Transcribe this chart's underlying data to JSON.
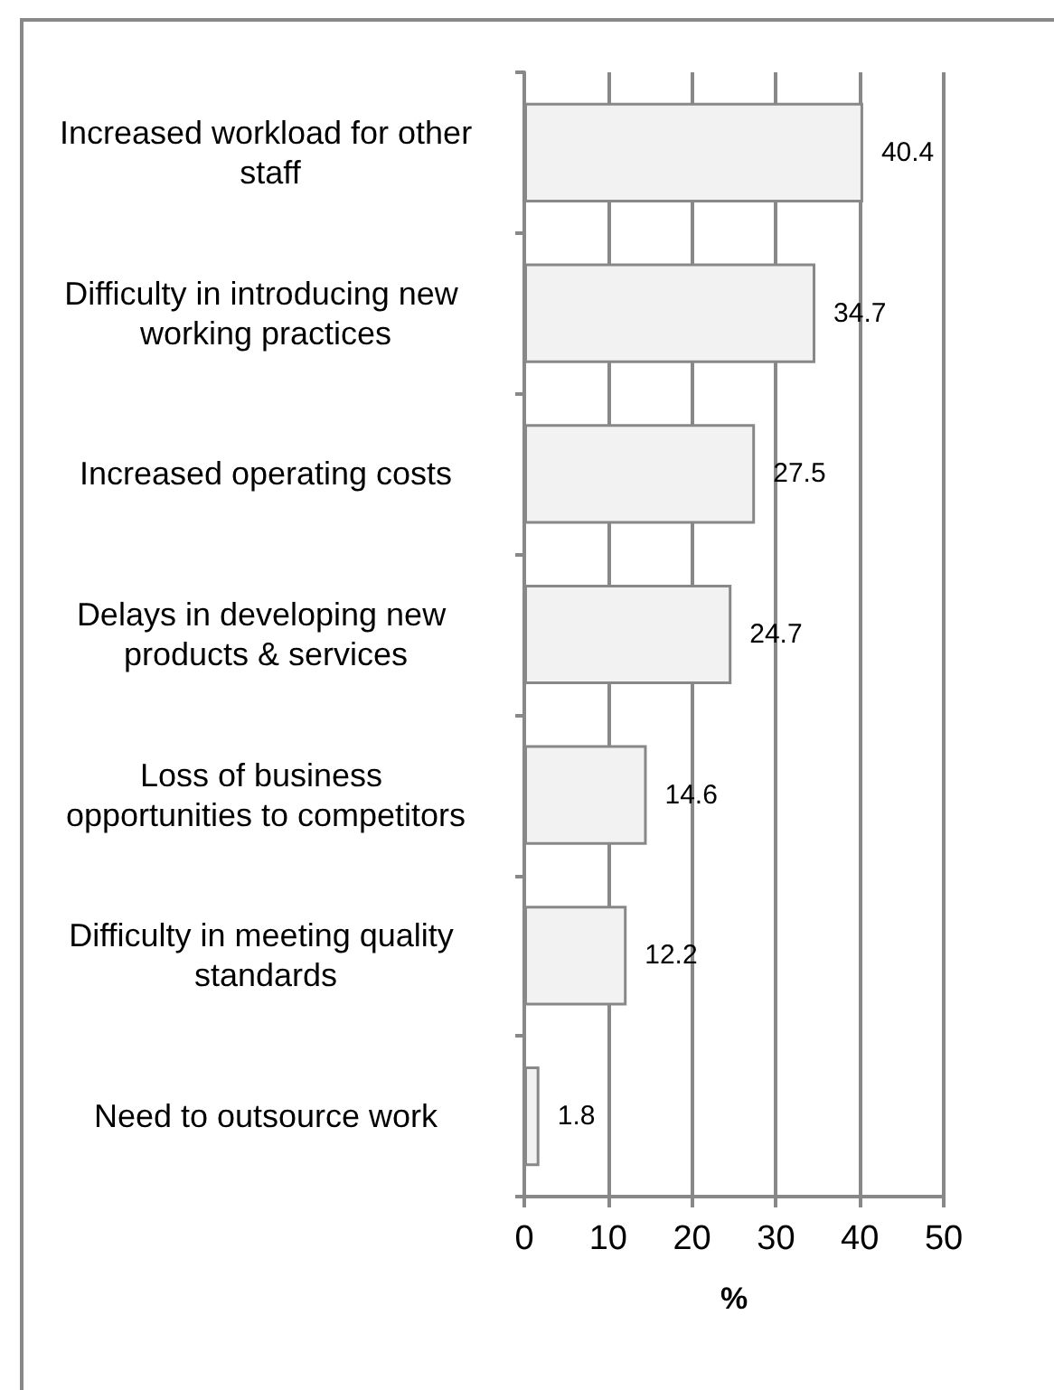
{
  "chart_data": {
    "type": "bar",
    "orientation": "horizontal",
    "xlabel": "%",
    "categories": [
      "Increased workload for other staff",
      "Difficulty in introducing new working practices",
      "Increased operating costs",
      "Delays in developing new products & services",
      "Loss of business opportunities to competitors",
      "Difficulty in meeting quality standards",
      "Need to outsource work"
    ],
    "values": [
      40.4,
      34.7,
      27.5,
      24.7,
      14.6,
      12.2,
      1.8
    ],
    "color": "#f2f2f2",
    "xlim": [
      0,
      50
    ],
    "xticks": [
      0,
      10,
      20,
      30,
      40,
      50
    ],
    "grid": "x",
    "data_labels": true
  }
}
